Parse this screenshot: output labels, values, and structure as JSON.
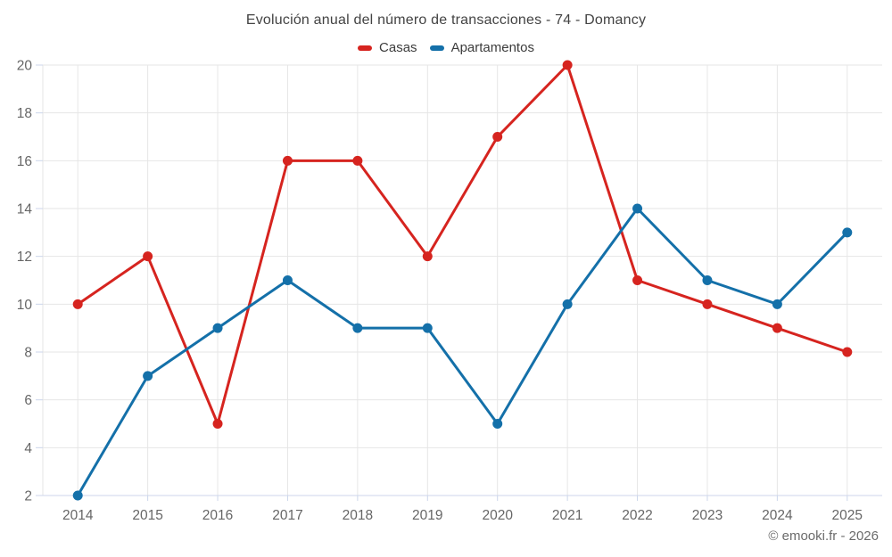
{
  "credits": "© emooki.fr - 2026",
  "chart_data": {
    "type": "line",
    "title": "Evolución anual del número de transacciones - 74 - Domancy",
    "xlabel": "",
    "ylabel": "",
    "categories": [
      "2014",
      "2015",
      "2016",
      "2017",
      "2018",
      "2019",
      "2020",
      "2021",
      "2022",
      "2023",
      "2024",
      "2025"
    ],
    "series": [
      {
        "name": "Casas",
        "color": "#d6241f",
        "values": [
          10,
          12,
          5,
          16,
          16,
          12,
          17,
          20,
          11,
          10,
          9,
          8
        ]
      },
      {
        "name": "Apartamentos",
        "color": "#1470a9",
        "values": [
          2,
          7,
          9,
          11,
          9,
          9,
          5,
          10,
          14,
          11,
          10,
          13
        ]
      }
    ],
    "ylim": [
      2,
      20
    ],
    "yticks": [
      2,
      4,
      6,
      8,
      10,
      12,
      14,
      16,
      18,
      20
    ],
    "grid": true,
    "legend_position": "top",
    "colors": {
      "grid": "#e6e6e6",
      "axis": "#ccd6eb",
      "axis_label": "#666666",
      "title_text": "#434343",
      "legend_text": "#3c3c3c",
      "credits_text": "#6b6b6b"
    }
  }
}
